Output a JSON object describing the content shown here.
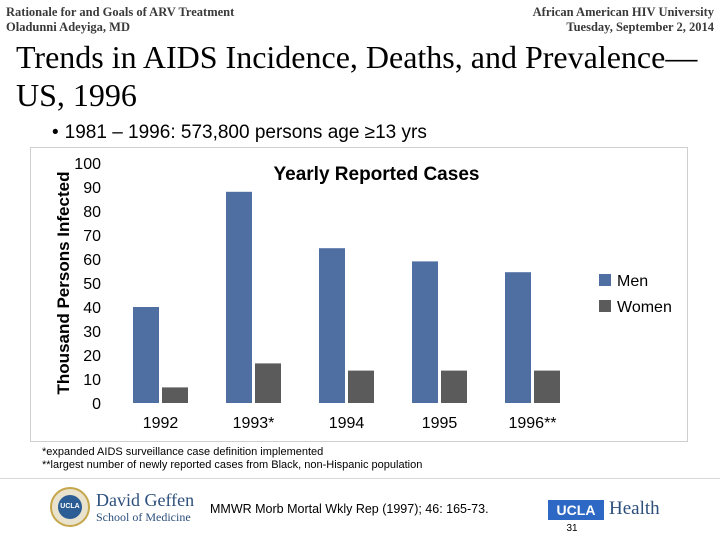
{
  "header": {
    "left_line1": "Rationale for and Goals of ARV Treatment",
    "left_line2": "Oladunni Adeyiga, MD",
    "right_line1": "African American HIV University",
    "right_line2": "Tuesday, September 2, 2014"
  },
  "slide": {
    "title": "Trends in AIDS Incidence, Deaths, and Prevalence—US, 1996",
    "bullet": "1981 – 1996:  573,800 persons age ≥13 yrs"
  },
  "chart_data": {
    "type": "bar",
    "title": "Yearly Reported Cases",
    "xlabel": "",
    "ylabel": "Thousand Persons Infected",
    "categories": [
      "1992",
      "1993*",
      "1994",
      "1995",
      "1996**"
    ],
    "series": [
      {
        "name": "Men",
        "values": [
          40,
          88,
          64.5,
          59,
          54.5
        ],
        "color": "#4f6fa3"
      },
      {
        "name": "Women",
        "values": [
          6.5,
          16.5,
          13.5,
          13.5,
          13.5
        ],
        "color": "#5b5b5b"
      }
    ],
    "ylim": [
      0,
      100
    ],
    "yticks": [
      0,
      10,
      20,
      30,
      40,
      50,
      60,
      70,
      80,
      90,
      100
    ],
    "legend_position": "right",
    "grid": false
  },
  "notes": {
    "line1": "*expanded AIDS surveillance case definition implemented",
    "line2": "**largest number of newly reported cases from Black, non-Hispanic population"
  },
  "footer": {
    "reference": "MMWR Morb Mortal Wkly Rep (1997); 46: 165-73.",
    "school_name": "David Geffen",
    "school_sub": "School of Medicine",
    "seal_text": "UCLA",
    "ucla_label": "UCLA",
    "health_label": "Health",
    "page_number": "31"
  },
  "icons": {
    "bullet": "bullet-dot",
    "seal": "university-seal-icon"
  }
}
